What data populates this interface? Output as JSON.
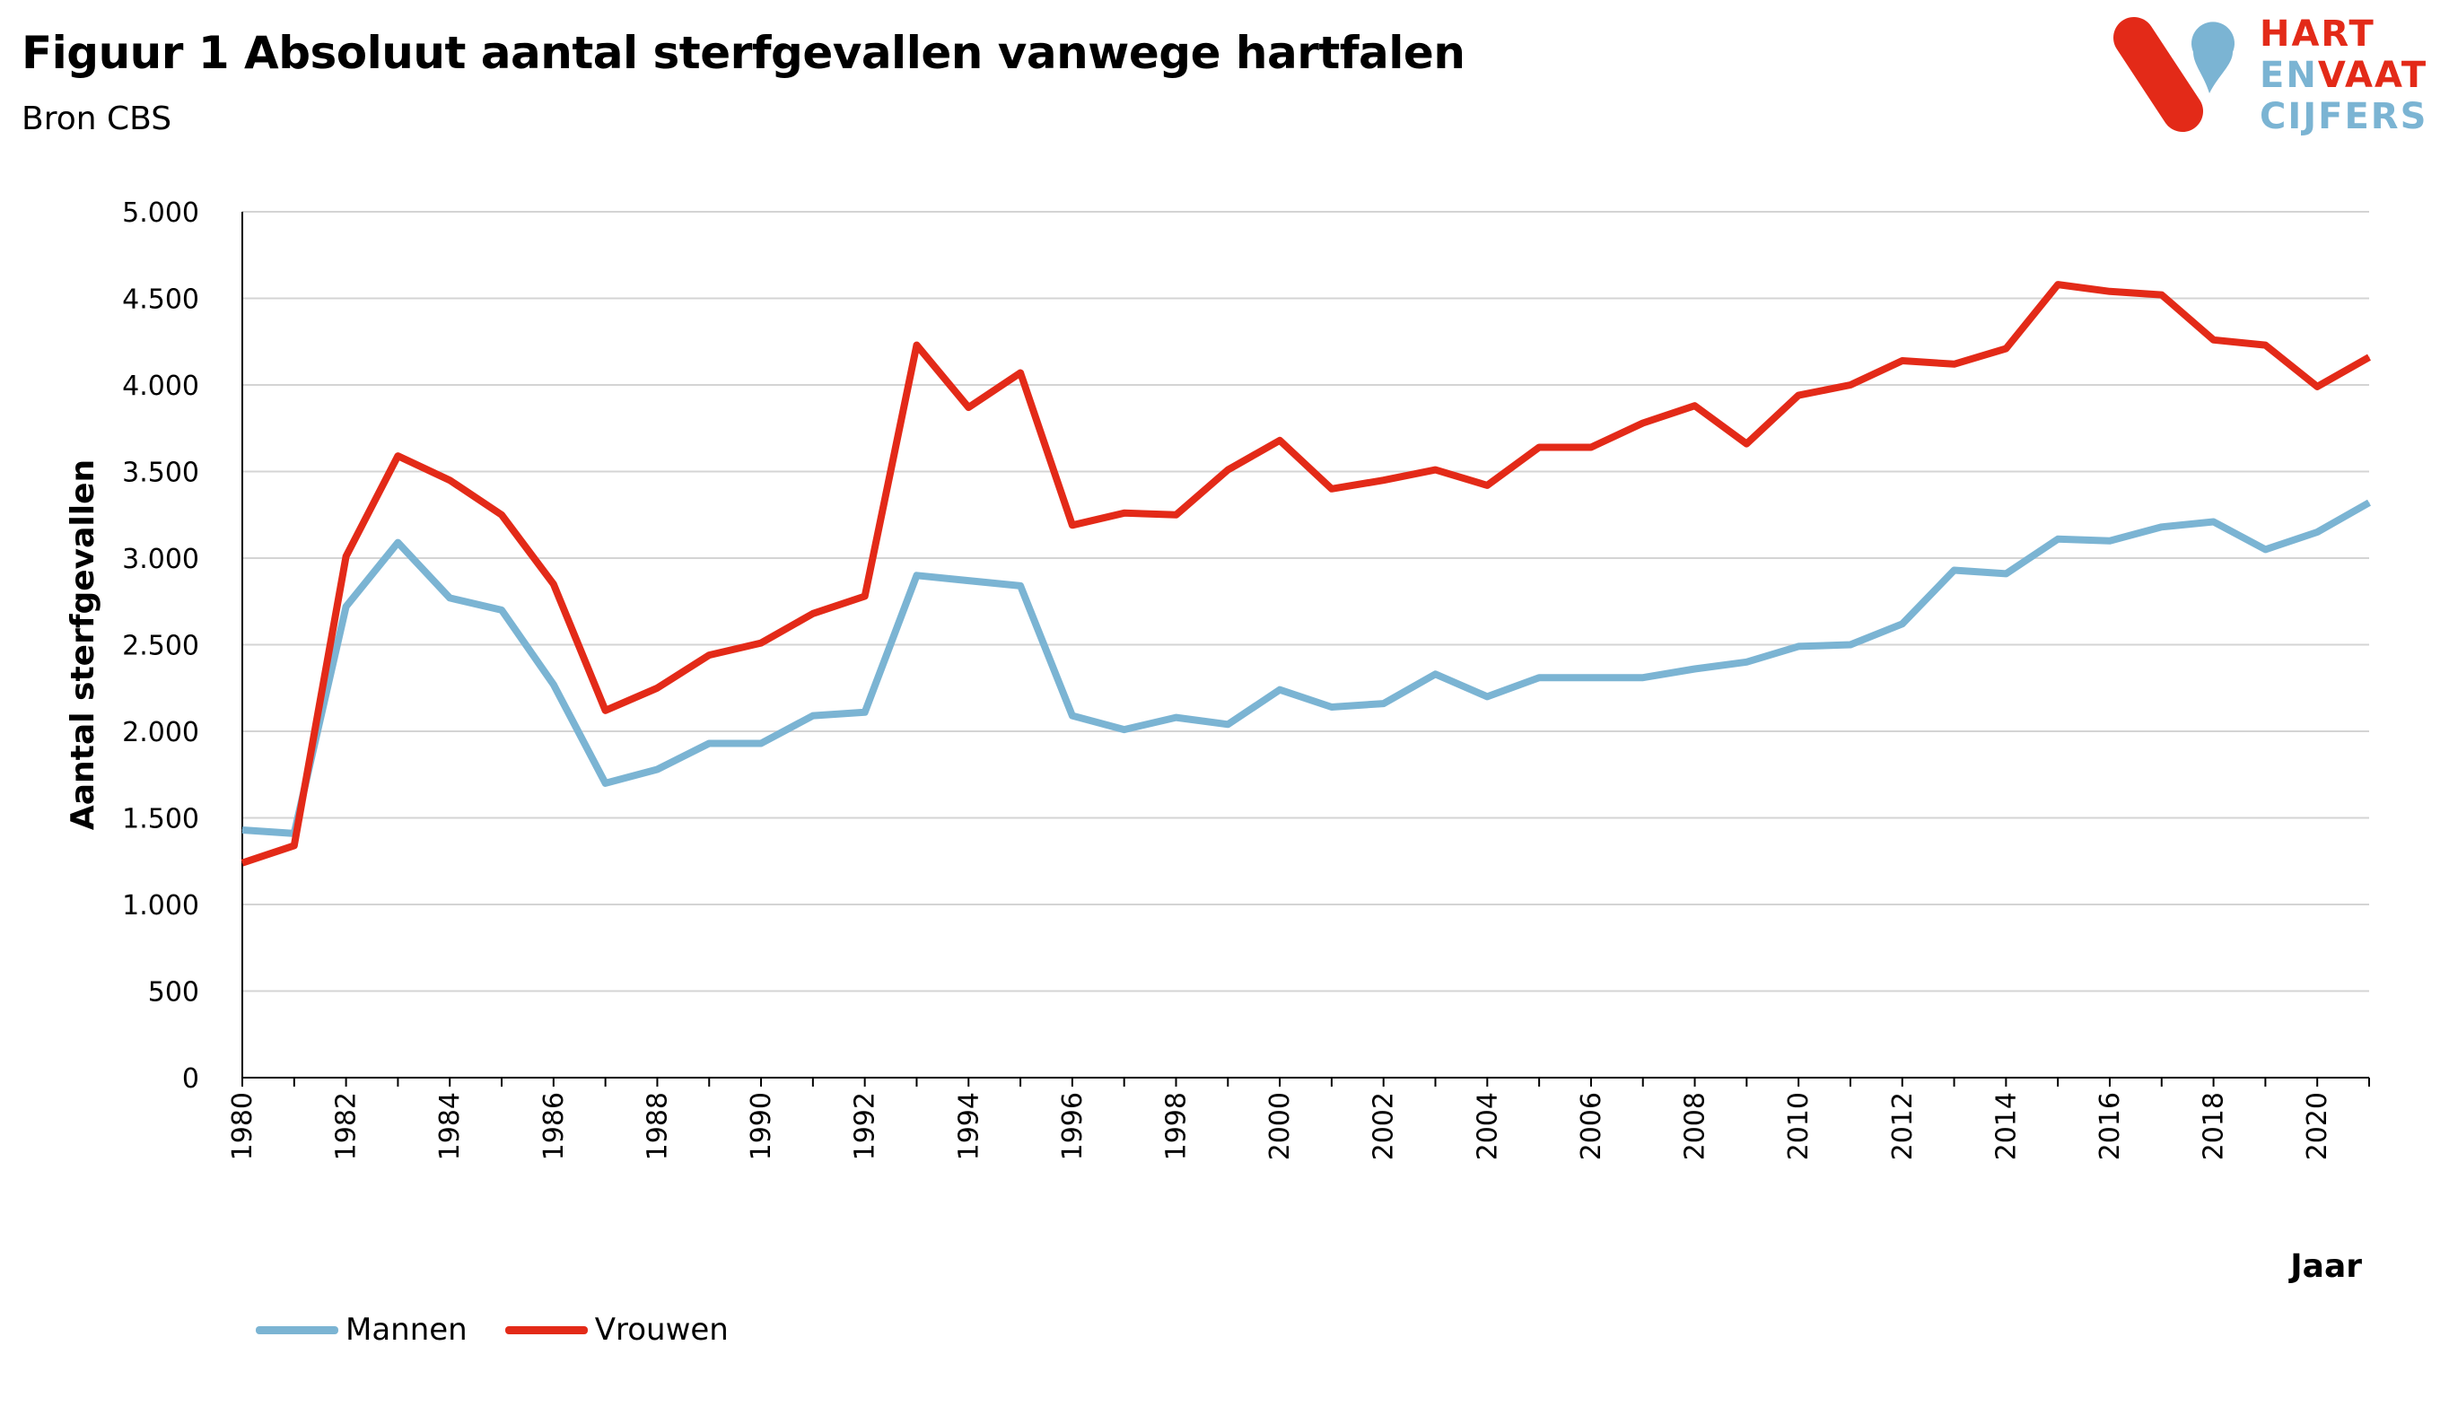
{
  "header": {
    "title": "Figuur 1 Absoluut aantal sterfgevallen vanwege hartfalen",
    "subtitle": "Bron CBS"
  },
  "logo": {
    "lines": [
      "HART",
      "ENVAAT",
      "CIJFERS"
    ],
    "colors": {
      "red": "#e32a18",
      "blue": "#7bb4d3"
    }
  },
  "chart_data": {
    "type": "line",
    "xlabel": "Jaar",
    "ylabel": "Aantal sterfgevallen",
    "ylim": [
      0,
      5000
    ],
    "xlim": [
      1980,
      2021
    ],
    "yticks": [
      0,
      500,
      1000,
      1500,
      2000,
      2500,
      3000,
      3500,
      4000,
      4500,
      5000
    ],
    "ytick_labels": [
      "0",
      "500",
      "1.000",
      "1.500",
      "2.000",
      "2.500",
      "3.000",
      "3.500",
      "4.000",
      "4.500",
      "5.000"
    ],
    "xtick_labels": [
      "1980",
      "1982",
      "1984",
      "1986",
      "1988",
      "1990",
      "1992",
      "1994",
      "1996",
      "1998",
      "2000",
      "2002",
      "2004",
      "2006",
      "2008",
      "2010",
      "2012",
      "2014",
      "2016",
      "2018",
      "2020"
    ],
    "grid": "horizontal",
    "legend_position": "bottom-left",
    "x": [
      1980,
      1981,
      1982,
      1983,
      1984,
      1985,
      1986,
      1987,
      1988,
      1989,
      1990,
      1991,
      1992,
      1993,
      1994,
      1995,
      1996,
      1997,
      1998,
      1999,
      2000,
      2001,
      2002,
      2003,
      2004,
      2005,
      2006,
      2007,
      2008,
      2009,
      2010,
      2011,
      2012,
      2013,
      2014,
      2015,
      2016,
      2017,
      2018,
      2019,
      2020,
      2021
    ],
    "series": [
      {
        "name": "Mannen",
        "color": "#7bb4d3",
        "values": [
          1430,
          1410,
          2720,
          3090,
          2770,
          2700,
          2270,
          1700,
          1780,
          1930,
          1930,
          2090,
          2110,
          2900,
          2870,
          2840,
          2090,
          2010,
          2080,
          2040,
          2240,
          2140,
          2160,
          2330,
          2200,
          2310,
          2310,
          2310,
          2360,
          2400,
          2490,
          2500,
          2620,
          2930,
          2910,
          3110,
          3100,
          3180,
          3210,
          3050,
          3150,
          3320
        ]
      },
      {
        "name": "Vrouwen",
        "color": "#e32a18",
        "values": [
          1240,
          1340,
          3010,
          3590,
          3450,
          3250,
          2850,
          2120,
          2250,
          2440,
          2510,
          2680,
          2780,
          4230,
          3870,
          4070,
          3190,
          3260,
          3250,
          3510,
          3680,
          3400,
          3450,
          3510,
          3420,
          3640,
          3640,
          3780,
          3880,
          3660,
          3940,
          4000,
          4140,
          4120,
          4210,
          4580,
          4540,
          4520,
          4260,
          4230,
          3990,
          4160
        ]
      }
    ]
  }
}
